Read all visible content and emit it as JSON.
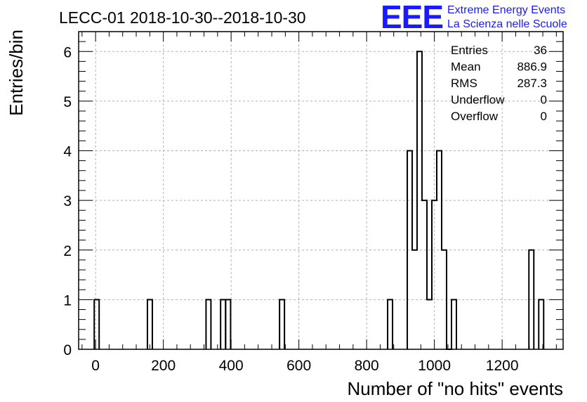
{
  "chart_data": {
    "type": "histogram",
    "title": "LECC-01 2018-10-30--2018-10-30",
    "xlabel": "Number of \"no hits\" events",
    "ylabel": "Entries/bin",
    "xlim": [
      -50,
      1380
    ],
    "ylim": [
      0,
      6.4
    ],
    "grid": true,
    "bin_width": 14.5,
    "bins": [
      {
        "x_low": -4,
        "value": 1
      },
      {
        "x_low": 153,
        "value": 1
      },
      {
        "x_low": 326,
        "value": 1
      },
      {
        "x_low": 369,
        "value": 1
      },
      {
        "x_low": 384,
        "value": 1
      },
      {
        "x_low": 543,
        "value": 1
      },
      {
        "x_low": 862,
        "value": 1
      },
      {
        "x_low": 920,
        "value": 4
      },
      {
        "x_low": 934.5,
        "value": 2
      },
      {
        "x_low": 949,
        "value": 6
      },
      {
        "x_low": 963.5,
        "value": 3
      },
      {
        "x_low": 978,
        "value": 1
      },
      {
        "x_low": 992.5,
        "value": 3
      },
      {
        "x_low": 1007,
        "value": 4
      },
      {
        "x_low": 1021.5,
        "value": 2
      },
      {
        "x_low": 1036,
        "value": 0
      },
      {
        "x_low": 1050.5,
        "value": 1
      },
      {
        "x_low": 1279,
        "value": 2
      },
      {
        "x_low": 1308,
        "value": 1
      }
    ],
    "x_ticks": [
      {
        "value": 0,
        "label": "0"
      },
      {
        "value": 200,
        "label": "200"
      },
      {
        "value": 400,
        "label": "400"
      },
      {
        "value": 600,
        "label": "600"
      },
      {
        "value": 800,
        "label": "800"
      },
      {
        "value": 1000,
        "label": "1000"
      },
      {
        "value": 1200,
        "label": "1200"
      }
    ],
    "y_ticks": [
      {
        "value": 0,
        "label": "0"
      },
      {
        "value": 1,
        "label": "1"
      },
      {
        "value": 2,
        "label": "2"
      },
      {
        "value": 3,
        "label": "3"
      },
      {
        "value": 4,
        "label": "4"
      },
      {
        "value": 5,
        "label": "5"
      },
      {
        "value": 6,
        "label": "6"
      }
    ],
    "stats": [
      {
        "label": "Entries",
        "value": "36"
      },
      {
        "label": "Mean",
        "value": "886.9"
      },
      {
        "label": "RMS",
        "value": "287.3"
      },
      {
        "label": "Underflow",
        "value": "0"
      },
      {
        "label": "Overflow",
        "value": "0"
      }
    ]
  },
  "logo": {
    "mark": "EEE",
    "line1": "Extreme Energy Events",
    "line2": "La Scienza nelle Scuole",
    "color": "#1a1aff"
  }
}
